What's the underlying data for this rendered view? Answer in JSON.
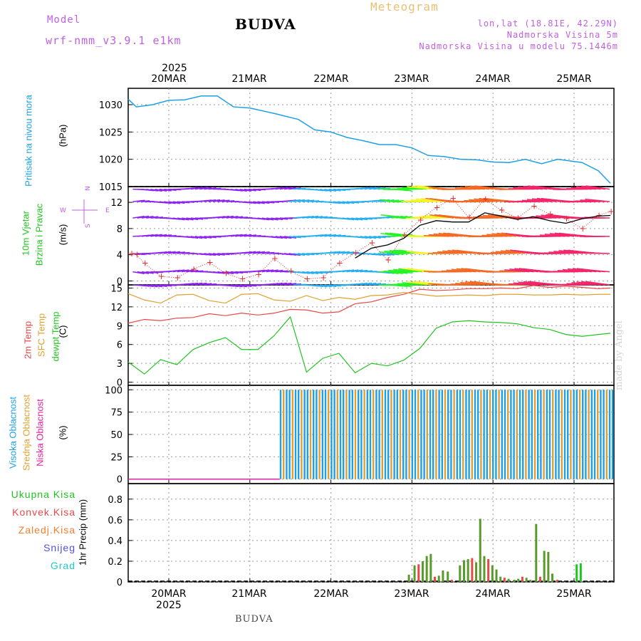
{
  "header": {
    "model_label": "Model",
    "model_run": "wrf-nmm_v3.9.1  e1km",
    "title": "BUDVA",
    "meteogram": "Meteogram",
    "lonlat": "lon,lat (18.81E, 42.29N)",
    "elevation": "Nadmorska Visina 5m",
    "model_elevation": "Nadmorska Visina u modelu 75.1446m"
  },
  "footer": {
    "station": "BUDVA",
    "credit": "made by Angel"
  },
  "time_axis": {
    "year": "2025",
    "days": [
      "20MAR",
      "21MAR",
      "22MAR",
      "23MAR",
      "24MAR",
      "25MAR"
    ]
  },
  "panels": {
    "pressure": {
      "label": "Pritisak na nivou mora",
      "unit": "(hPa)"
    },
    "wind": {
      "label1": "10m Vjetar",
      "label2": "Brzina i Pravac",
      "unit": "(m/s)",
      "compass": {
        "n": "N",
        "s": "S",
        "e": "E",
        "w": "W"
      }
    },
    "temp": {
      "label_t2m": "2m Temp",
      "label_sfc": "SFC Temp",
      "label_dew": "dewpt Temp",
      "unit": "(C)"
    },
    "cloud": {
      "label_high": "Visoka Oblacnost",
      "label_mid": "Srednja Oblacnost",
      "label_low": "Niska Oblacnost",
      "unit": "(%)"
    },
    "precip": {
      "legend": [
        "Ukupna Kisa",
        "Konvek.Kisa",
        "Zaledj.Kisa",
        "Snijeg",
        "Grad"
      ],
      "unit": "1hr Precip (mm)"
    }
  },
  "colors": {
    "pressure": "#1ea0e6",
    "t2m": "#e84848",
    "sfc": "#e0a030",
    "dew": "#22c422",
    "gust": "#000000",
    "wind_speed_marker": "#e03030",
    "cloud_high": "#1ea0e6",
    "cloud_mid": "#e0a030",
    "cloud_low": "#e020a0",
    "rain_total": "#22c422",
    "rain_conv": "#e84848",
    "rain_frz": "#f08030",
    "snow": "#5050e0",
    "hail": "#20c8c8",
    "purple": "#c060e0"
  },
  "chart_data": [
    {
      "type": "line",
      "title": "Pritisak na nivou mora",
      "ylabel": "(hPa)",
      "ylim": [
        1015,
        1033
      ],
      "yticks": [
        1015,
        1020,
        1025,
        1030
      ],
      "x_day": [
        0,
        0.1,
        0.3,
        0.5,
        0.7,
        0.9,
        1.1,
        1.3,
        1.5,
        1.8,
        2.1,
        2.3,
        2.5,
        2.7,
        2.9,
        3.1,
        3.3,
        3.5,
        3.7,
        3.9,
        4.1,
        4.3,
        4.5,
        4.7,
        4.9,
        5.1,
        5.3,
        5.6,
        5.8,
        5.95
      ],
      "series": [
        {
          "values": [
            1031,
            1029.6,
            1030,
            1030.8,
            1030.9,
            1031.6,
            1031.6,
            1029.6,
            1029.4,
            1028.4,
            1027.3,
            1025.4,
            1025.0,
            1024.0,
            1023.4,
            1022.7,
            1022.7,
            1022.1,
            1020.7,
            1020.5,
            1020.0,
            1019.9,
            1019.5,
            1019.4,
            1020.0,
            1019.2,
            1020.0,
            1019.4,
            1017.9,
            1015.6
          ]
        }
      ]
    },
    {
      "type": "line",
      "title": "10m Vjetar Brzina i Pravac",
      "ylabel": "(m/s)",
      "ylim": [
        -0.6,
        14.4
      ],
      "yticks": [
        0,
        4,
        8,
        12
      ],
      "x_day": [
        0,
        0.1,
        0.2,
        0.4,
        0.6,
        0.8,
        1.0,
        1.2,
        1.4,
        1.6,
        1.8,
        2.0,
        2.2,
        2.4,
        2.6,
        2.8,
        3.0,
        3.2,
        3.4,
        3.6,
        3.8,
        4.0,
        4.2,
        4.4,
        4.6,
        4.8,
        5.0,
        5.2,
        5.4,
        5.6,
        5.8,
        5.95
      ],
      "series": [
        {
          "name": "speed",
          "values": [
            4.2,
            4.0,
            2.7,
            0.7,
            0.5,
            1.8,
            2.8,
            1.2,
            0.3,
            1.0,
            3.4,
            1.5,
            0.3,
            0.5,
            2.7,
            4.3,
            5.8,
            3.2,
            7.0,
            9.3,
            11.2,
            12.6,
            9.7,
            12.5,
            10.8,
            9.6,
            11.4,
            10.2,
            9.5,
            8.0,
            10.0,
            10.6
          ]
        },
        {
          "name": "gust",
          "values": [
            null,
            null,
            null,
            null,
            null,
            null,
            null,
            null,
            null,
            null,
            null,
            null,
            null,
            null,
            null,
            3.5,
            5.0,
            5.5,
            6.5,
            8.5,
            9.2,
            9.0,
            9.0,
            10.4,
            9.9,
            9.4,
            9.8,
            9.2,
            8.8,
            9.5,
            9.9,
            10.0
          ]
        }
      ]
    },
    {
      "type": "line",
      "title": "2m Temp / SFC Temp / dewpt Temp",
      "ylabel": "(C)",
      "ylim": [
        -0.5,
        15.5
      ],
      "yticks": [
        0,
        3,
        6,
        9,
        12,
        15
      ],
      "x_day": [
        0,
        0.2,
        0.4,
        0.6,
        0.8,
        1.0,
        1.2,
        1.4,
        1.6,
        1.8,
        2.0,
        2.2,
        2.4,
        2.6,
        2.8,
        3.0,
        3.2,
        3.4,
        3.6,
        3.8,
        4.0,
        4.2,
        4.4,
        4.6,
        4.8,
        5.0,
        5.2,
        5.4,
        5.6,
        5.8,
        5.95
      ],
      "series": [
        {
          "name": "2m Temp",
          "values": [
            9.4,
            10.0,
            9.8,
            10.2,
            10.3,
            10.9,
            10.6,
            11.0,
            10.7,
            11.0,
            11.6,
            11.5,
            11.0,
            11.2,
            12.5,
            12.8,
            13.5,
            14.0,
            14.8,
            14.6,
            14.7,
            14.9,
            14.9,
            15.0,
            14.9,
            15.4,
            15.1,
            15.3,
            15.1,
            14.9,
            15.0
          ]
        },
        {
          "name": "SFC Temp",
          "values": [
            14.1,
            13.1,
            12.6,
            13.9,
            14.0,
            13.0,
            12.6,
            14.0,
            14.1,
            13.1,
            12.9,
            13.8,
            13.0,
            13.5,
            13.2,
            13.8,
            13.9,
            14.3,
            14.0,
            13.7,
            13.8,
            13.9,
            13.8,
            14.0,
            14.0,
            13.9,
            13.9,
            14.0,
            13.9,
            14.0,
            14.0
          ]
        },
        {
          "name": "dewpt Temp",
          "values": [
            3.2,
            1.3,
            3.6,
            2.8,
            5.2,
            6.3,
            7.1,
            5.2,
            5.2,
            7.4,
            10.4,
            1.6,
            3.8,
            4.6,
            1.5,
            3.0,
            2.6,
            3.5,
            5.4,
            8.6,
            9.6,
            9.8,
            9.6,
            9.5,
            9.3,
            8.7,
            8.4,
            7.6,
            7.3,
            7.6,
            7.8
          ]
        }
      ]
    },
    {
      "type": "bar",
      "title": "Visoka / Srednja / Niska Oblacnost",
      "ylabel": "(%)",
      "ylim": [
        -5,
        105
      ],
      "yticks": [
        0,
        25,
        50,
        75,
        100
      ],
      "cloud_start_day": 1.87,
      "cloud_end_day": 6.0,
      "series": [
        {
          "name": "Visoka Oblacnost",
          "values": [
            100
          ]
        },
        {
          "name": "Srednja Oblacnost",
          "values": [
            100
          ]
        },
        {
          "name": "Niska Oblacnost",
          "values": [
            0
          ]
        }
      ]
    },
    {
      "type": "bar",
      "title": "1hr Precip",
      "ylabel": "1hr Precip (mm)",
      "ylim": [
        0,
        0.95
      ],
      "yticks": [
        0,
        0.2,
        0.4,
        0.6,
        0.8
      ],
      "x_day": [
        3.45,
        3.52,
        3.57,
        3.62,
        3.67,
        3.72,
        3.77,
        3.82,
        3.87,
        3.93,
        3.98,
        4.08,
        4.13,
        4.18,
        4.23,
        4.28,
        4.33,
        4.38,
        4.43,
        4.48,
        4.53,
        4.58,
        4.63,
        4.68,
        4.75,
        4.8,
        4.85,
        4.9,
        4.95,
        5.02,
        5.07,
        5.12,
        5.17,
        5.22,
        5.28,
        5.52,
        5.57
      ],
      "values": [
        0.07,
        0.16,
        0.17,
        0.2,
        0.25,
        0.27,
        0.05,
        0.06,
        0.11,
        0.1,
        0.02,
        0.16,
        0.21,
        0.22,
        0.23,
        0.19,
        0.61,
        0.25,
        0.22,
        0.16,
        0.12,
        0.05,
        0.04,
        0.03,
        0.02,
        0.03,
        0.05,
        0.04,
        0.02,
        0.56,
        0.05,
        0.3,
        0.29,
        0.08,
        0.02,
        0.17,
        0.18
      ]
    }
  ]
}
